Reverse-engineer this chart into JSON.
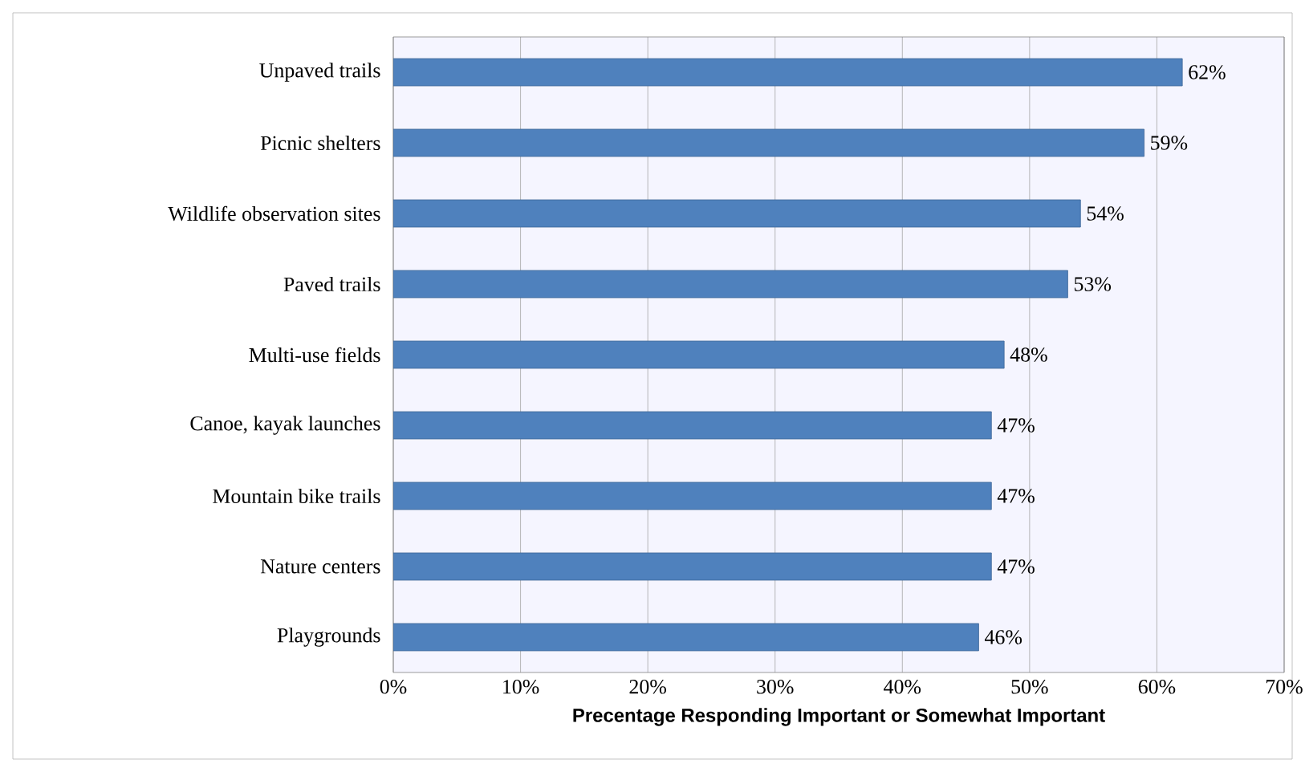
{
  "chart_data": {
    "type": "bar",
    "orientation": "horizontal",
    "xlabel": "Precentage Responding Important or Somewhat Important",
    "categories": [
      "Unpaved trails",
      "Picnic shelters",
      "Wildlife observation sites",
      "Paved trails",
      "Multi-use fields",
      "Canoe, kayak launches",
      "Mountain bike trails",
      "Nature centers",
      "Playgrounds"
    ],
    "values": [
      62,
      59,
      54,
      53,
      48,
      47,
      47,
      47,
      46
    ],
    "value_labels": [
      "62%",
      "59%",
      "54%",
      "53%",
      "48%",
      "47%",
      "47%",
      "47%",
      "46%"
    ],
    "color": "#4f81bd",
    "xlim": [
      0,
      70
    ],
    "xticks": [
      {
        "value": 0,
        "label": "0%"
      },
      {
        "value": 10,
        "label": "10%"
      },
      {
        "value": 20,
        "label": "20%"
      },
      {
        "value": 30,
        "label": "30%"
      },
      {
        "value": 40,
        "label": "40%"
      },
      {
        "value": 50,
        "label": "50%"
      },
      {
        "value": 60,
        "label": "60%"
      },
      {
        "value": 70,
        "label": "70%"
      }
    ],
    "grid": "x"
  }
}
